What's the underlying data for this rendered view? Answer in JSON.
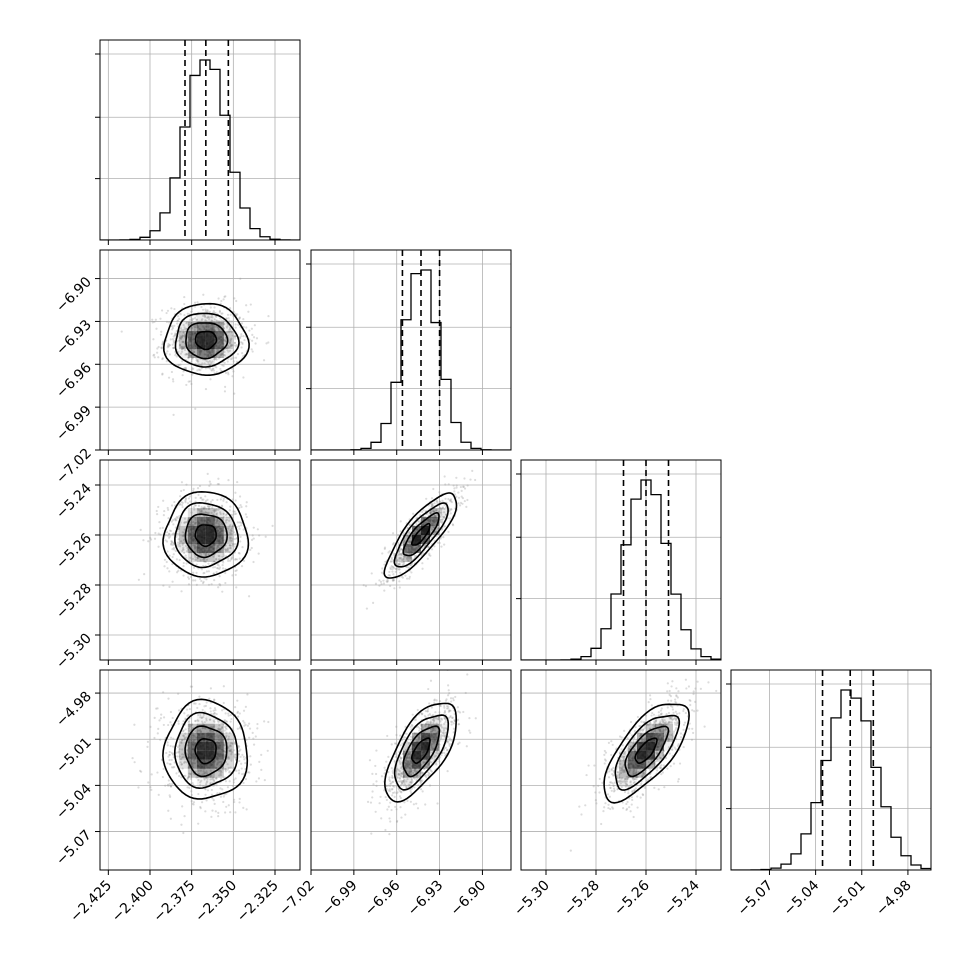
{
  "chart_data": {
    "type": "corner",
    "parameters": [
      {
        "mean": -2.3665,
        "sd": 0.0125,
        "range": [
          -2.43,
          -2.31
        ],
        "ticks": [
          -2.425,
          -2.4,
          -2.375,
          -2.35,
          -2.325
        ],
        "tick_labels": [
          "−2.425",
          "−2.400",
          "−2.375",
          "−2.350",
          "−2.325"
        ],
        "quantiles": [
          -2.379,
          -2.3665,
          -2.353
        ]
      },
      {
        "mean": -6.943,
        "sd": 0.0125,
        "range": [
          -7.02,
          -6.88
        ],
        "ticks": [
          -7.02,
          -6.99,
          -6.96,
          -6.93,
          -6.9
        ],
        "tick_labels": [
          "−7.02",
          "−6.99",
          "−6.96",
          "−6.93",
          "−6.90"
        ],
        "quantiles": [
          -6.956,
          -6.943,
          -6.93
        ]
      },
      {
        "mean": -5.26,
        "sd": 0.0085,
        "range": [
          -5.31,
          -5.23
        ],
        "ticks": [
          -5.3,
          -5.28,
          -5.26,
          -5.24
        ],
        "tick_labels": [
          "−5.30",
          "−5.28",
          "−5.26",
          "−5.24"
        ],
        "quantiles": [
          -5.269,
          -5.26,
          -5.251
        ]
      },
      {
        "mean": -5.0175,
        "sd": 0.016,
        "range": [
          -5.095,
          -4.965
        ],
        "ticks": [
          -5.07,
          -5.04,
          -5.01,
          -4.98
        ],
        "tick_labels": [
          "−5.07",
          "−5.04",
          "−5.01",
          "−4.98"
        ],
        "quantiles": [
          -5.0355,
          -5.0175,
          -5.0025
        ]
      }
    ],
    "correlations": [
      [
        1.0,
        0.0,
        0.0,
        0.0
      ],
      [
        0.0,
        1.0,
        0.82,
        0.65
      ],
      [
        0.0,
        0.82,
        1.0,
        0.7
      ],
      [
        0.0,
        0.65,
        0.7,
        1.0
      ]
    ],
    "grid": true,
    "colors": {
      "contour": "#000000",
      "density": "#000000",
      "points": "#9a9a9a"
    }
  }
}
